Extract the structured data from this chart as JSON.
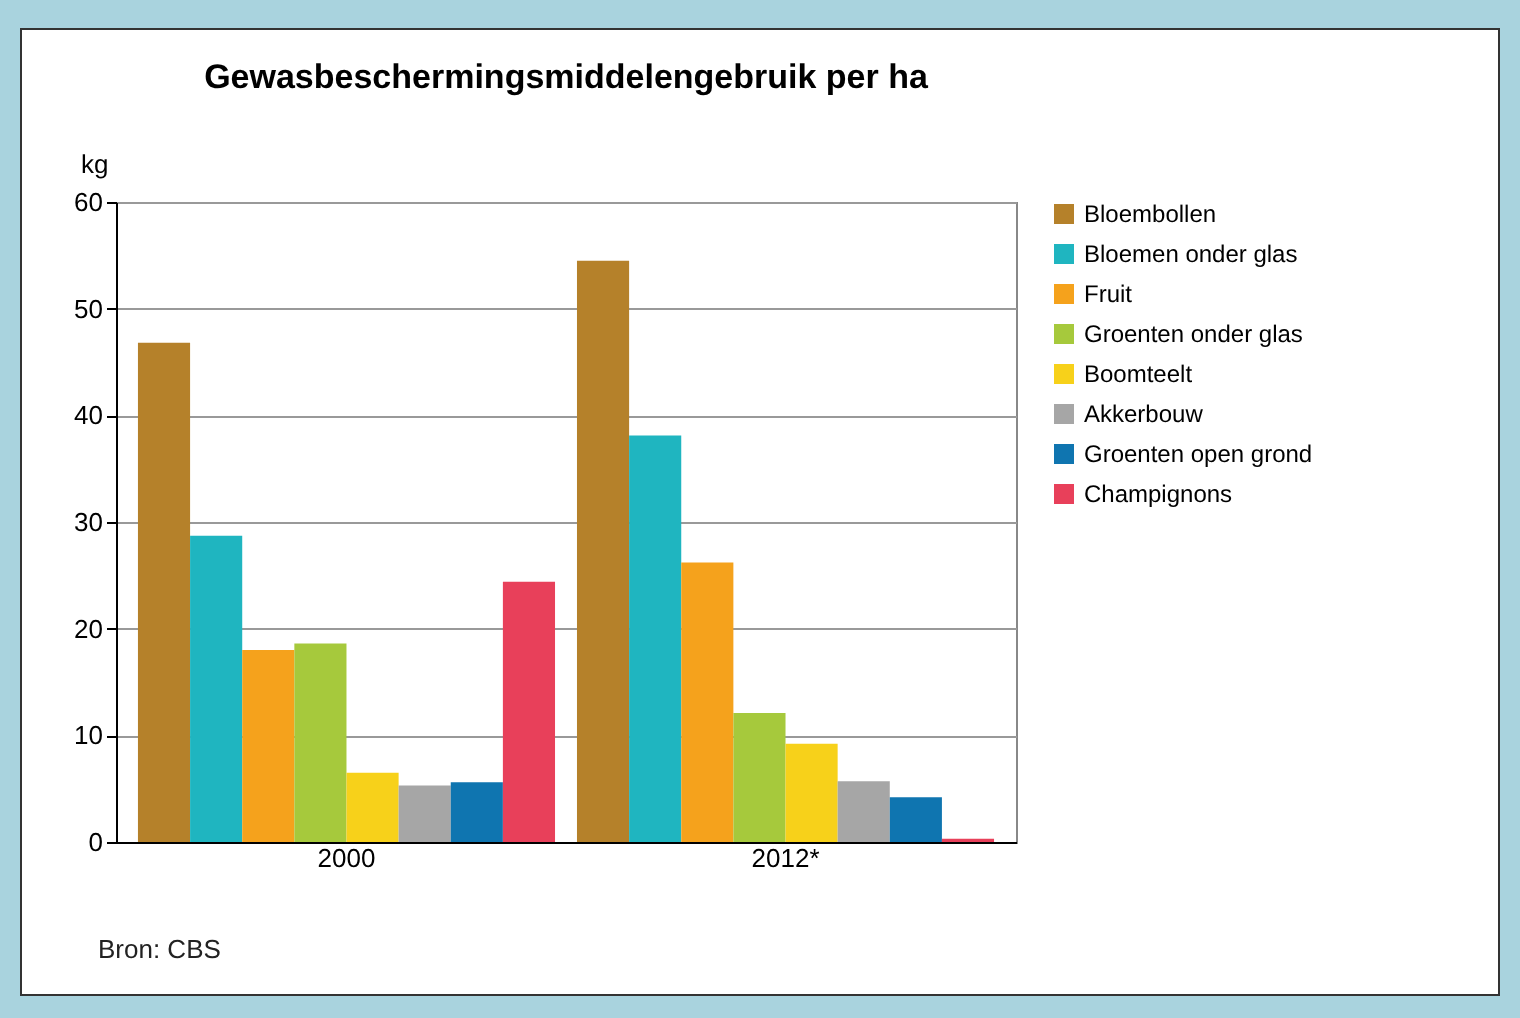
{
  "chart_data": {
    "type": "bar",
    "title": "Gewasbeschermingsmiddelengebruik per ha",
    "ylabel": "kg",
    "categories": [
      "2000",
      "2012*"
    ],
    "series": [
      {
        "name": "Bloembollen",
        "color": "#b5812a",
        "values": [
          46.8,
          54.5
        ]
      },
      {
        "name": "Bloemen onder glas",
        "color": "#1fb5c0",
        "values": [
          28.7,
          38.1
        ]
      },
      {
        "name": "Fruit",
        "color": "#f5a21c",
        "values": [
          18.0,
          26.2
        ]
      },
      {
        "name": "Groenten onder glas",
        "color": "#a6c93c",
        "values": [
          18.6,
          12.1
        ]
      },
      {
        "name": "Boomteelt",
        "color": "#f7d11a",
        "values": [
          6.5,
          9.2
        ]
      },
      {
        "name": "Akkerbouw",
        "color": "#a6a6a6",
        "values": [
          5.3,
          5.7
        ]
      },
      {
        "name": "Groenten open grond",
        "color": "#0f75b0",
        "values": [
          5.6,
          4.2
        ]
      },
      {
        "name": "Champignons",
        "color": "#e8405a",
        "values": [
          24.4,
          0.3
        ]
      }
    ],
    "ylim": [
      0,
      60
    ],
    "yticks": [
      0,
      10,
      20,
      30,
      40,
      50,
      60
    ],
    "grid": "y",
    "legend": "right",
    "annotations": [
      "Bron: CBS"
    ]
  }
}
